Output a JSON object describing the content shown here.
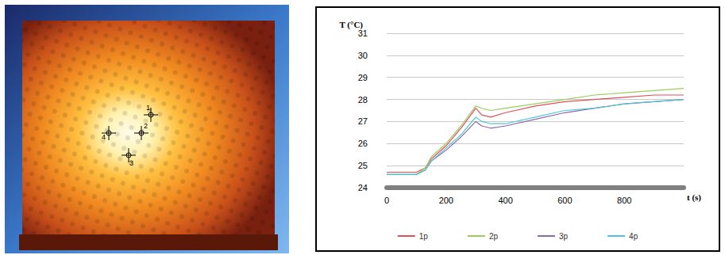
{
  "thermal_image": {
    "markers": [
      "1",
      "2",
      "3",
      "4"
    ]
  },
  "chart_data": {
    "type": "line",
    "x_label": "t (s)",
    "y_label": "T (°C)",
    "xlim": [
      0,
      1000
    ],
    "xticks": [
      0,
      200,
      400,
      600,
      800
    ],
    "ylim": [
      24,
      31
    ],
    "yticks": [
      24,
      25,
      26,
      27,
      28,
      29,
      30,
      31
    ],
    "grid": true,
    "legend": "bottom",
    "x": [
      0,
      100,
      130,
      150,
      200,
      250,
      300,
      320,
      350,
      400,
      500,
      600,
      700,
      800,
      900,
      1000
    ],
    "series": [
      {
        "name": "1p",
        "color": "#e0505a",
        "values": [
          24.7,
          24.7,
          24.9,
          25.3,
          25.9,
          26.7,
          27.6,
          27.3,
          27.2,
          27.4,
          27.7,
          27.9,
          28.0,
          28.1,
          28.2,
          28.2
        ]
      },
      {
        "name": "2p",
        "color": "#9acd5a",
        "values": [
          24.6,
          24.6,
          24.9,
          25.4,
          26.0,
          26.8,
          27.7,
          27.6,
          27.5,
          27.6,
          27.8,
          28.0,
          28.2,
          28.3,
          28.4,
          28.5
        ]
      },
      {
        "name": "3p",
        "color": "#8a6aa8",
        "values": [
          24.6,
          24.6,
          24.8,
          25.2,
          25.7,
          26.3,
          27.0,
          26.8,
          26.7,
          26.8,
          27.1,
          27.4,
          27.6,
          27.8,
          27.9,
          28.0
        ]
      },
      {
        "name": "4p",
        "color": "#4ec5d8",
        "values": [
          24.6,
          24.6,
          24.8,
          25.2,
          25.8,
          26.4,
          27.2,
          27.0,
          26.9,
          26.9,
          27.2,
          27.5,
          27.6,
          27.8,
          27.9,
          28.0
        ]
      }
    ]
  }
}
